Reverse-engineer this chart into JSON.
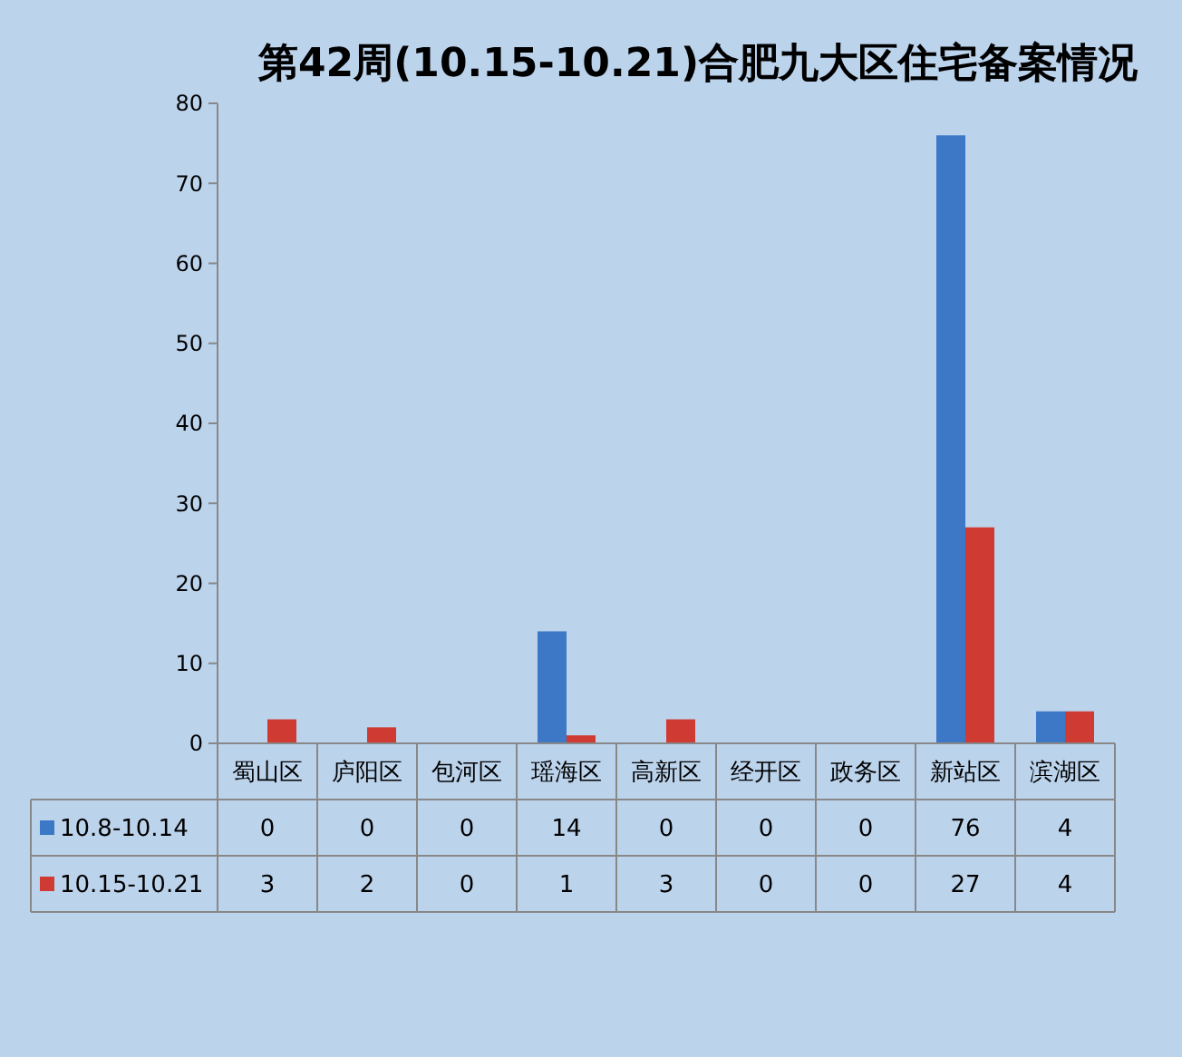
{
  "chart_data": {
    "type": "bar",
    "title": "第42周(10.15-10.21)合肥九大区住宅备案情况",
    "categories": [
      "蜀山区",
      "庐阳区",
      "包河区",
      "瑶海区",
      "高新区",
      "经开区",
      "政务区",
      "新站区",
      "滨湖区"
    ],
    "series": [
      {
        "name": "10.8-10.14",
        "color": "#3c78c6",
        "values": [
          0,
          0,
          0,
          14,
          0,
          0,
          0,
          76,
          4
        ]
      },
      {
        "name": "10.15-10.21",
        "color": "#cf3a32",
        "values": [
          3,
          2,
          0,
          1,
          3,
          0,
          0,
          27,
          4
        ]
      }
    ],
    "ylim": [
      0,
      80
    ],
    "yticks": [
      0,
      10,
      20,
      30,
      40,
      50,
      60,
      70,
      80
    ],
    "legend": "bottom",
    "data_labels": true
  }
}
